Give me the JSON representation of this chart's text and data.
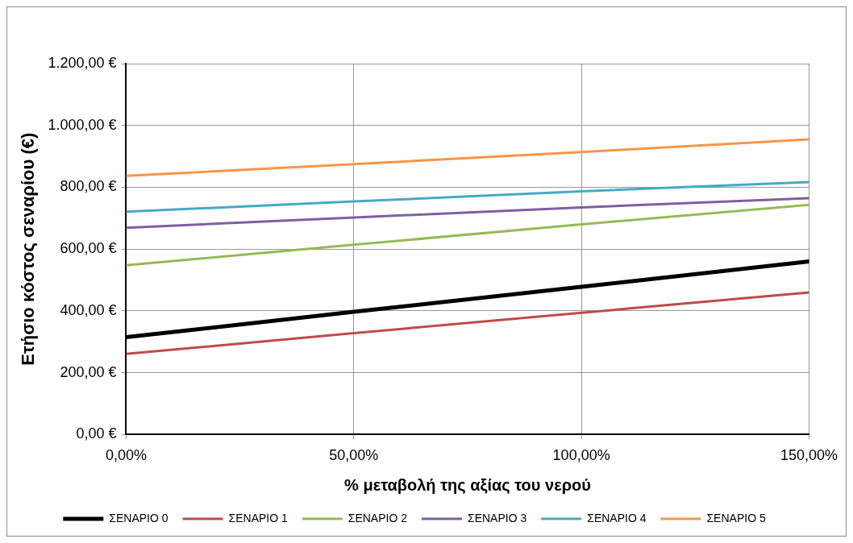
{
  "chart_data": {
    "type": "line",
    "xlabel": "% μεταβολή της αξίας του νερού",
    "ylabel": "Ετήσιο κόστος σεναρίου (€)",
    "x": [
      0,
      50,
      100,
      150
    ],
    "series": [
      {
        "name": "ΣΕΝΑΡΙΟ 0",
        "color": "#000000",
        "values": [
          315,
          397,
          478,
          560
        ]
      },
      {
        "name": "ΣΕΝΑΡΙΟ 1",
        "color": "#be4b48",
        "values": [
          261,
          328,
          394,
          460
        ]
      },
      {
        "name": "ΣΕΝΑΡΙΟ 2",
        "color": "#98b954",
        "values": [
          548,
          614,
          680,
          743
        ]
      },
      {
        "name": "ΣΕΝΑΡΙΟ 3",
        "color": "#7d60a0",
        "values": [
          669,
          702,
          735,
          765
        ]
      },
      {
        "name": "ΣΕΝΑΡΙΟ 4",
        "color": "#46aac5",
        "values": [
          721,
          754,
          787,
          817
        ]
      },
      {
        "name": "ΣΕΝΑΡΙΟ 5",
        "color": "#f79646",
        "values": [
          837,
          875,
          914,
          955
        ]
      }
    ],
    "xlim": [
      0,
      150
    ],
    "xticks": [
      {
        "value": 0,
        "label": "0,00%"
      },
      {
        "value": 50,
        "label": "50,00%"
      },
      {
        "value": 100,
        "label": "100,00%"
      },
      {
        "value": 150,
        "label": "150,00%"
      }
    ],
    "ylim": [
      0,
      1200
    ],
    "yticks": [
      {
        "value": 0,
        "label": "0,00 €"
      },
      {
        "value": 200,
        "label": "200,00 €"
      },
      {
        "value": 400,
        "label": "400,00 €"
      },
      {
        "value": 600,
        "label": "600,00 €"
      },
      {
        "value": 800,
        "label": "800,00 €"
      },
      {
        "value": 1000,
        "label": "1.000,00 €"
      },
      {
        "value": 1200,
        "label": "1.200,00 €"
      }
    ],
    "grid": true,
    "legend": "bottom",
    "marker": "none",
    "line_style": "solid"
  }
}
